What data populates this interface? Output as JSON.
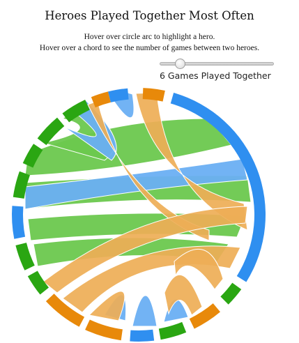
{
  "header": {
    "title": "Heroes Played Together Most Often",
    "instruction_line1": "Hover over circle arc to highlight a hero.",
    "instruction_line2": "Hover over a chord to see the number of games between two heroes."
  },
  "slider": {
    "value": 6,
    "label": "6 Games Played Together"
  },
  "colors": {
    "blue": "#2f8ff0",
    "blue_light": "#6aaff3",
    "green": "#2aa612",
    "green_light": "#6cc84e",
    "orange": "#e8890a",
    "orange_light": "#eeae56"
  }
}
